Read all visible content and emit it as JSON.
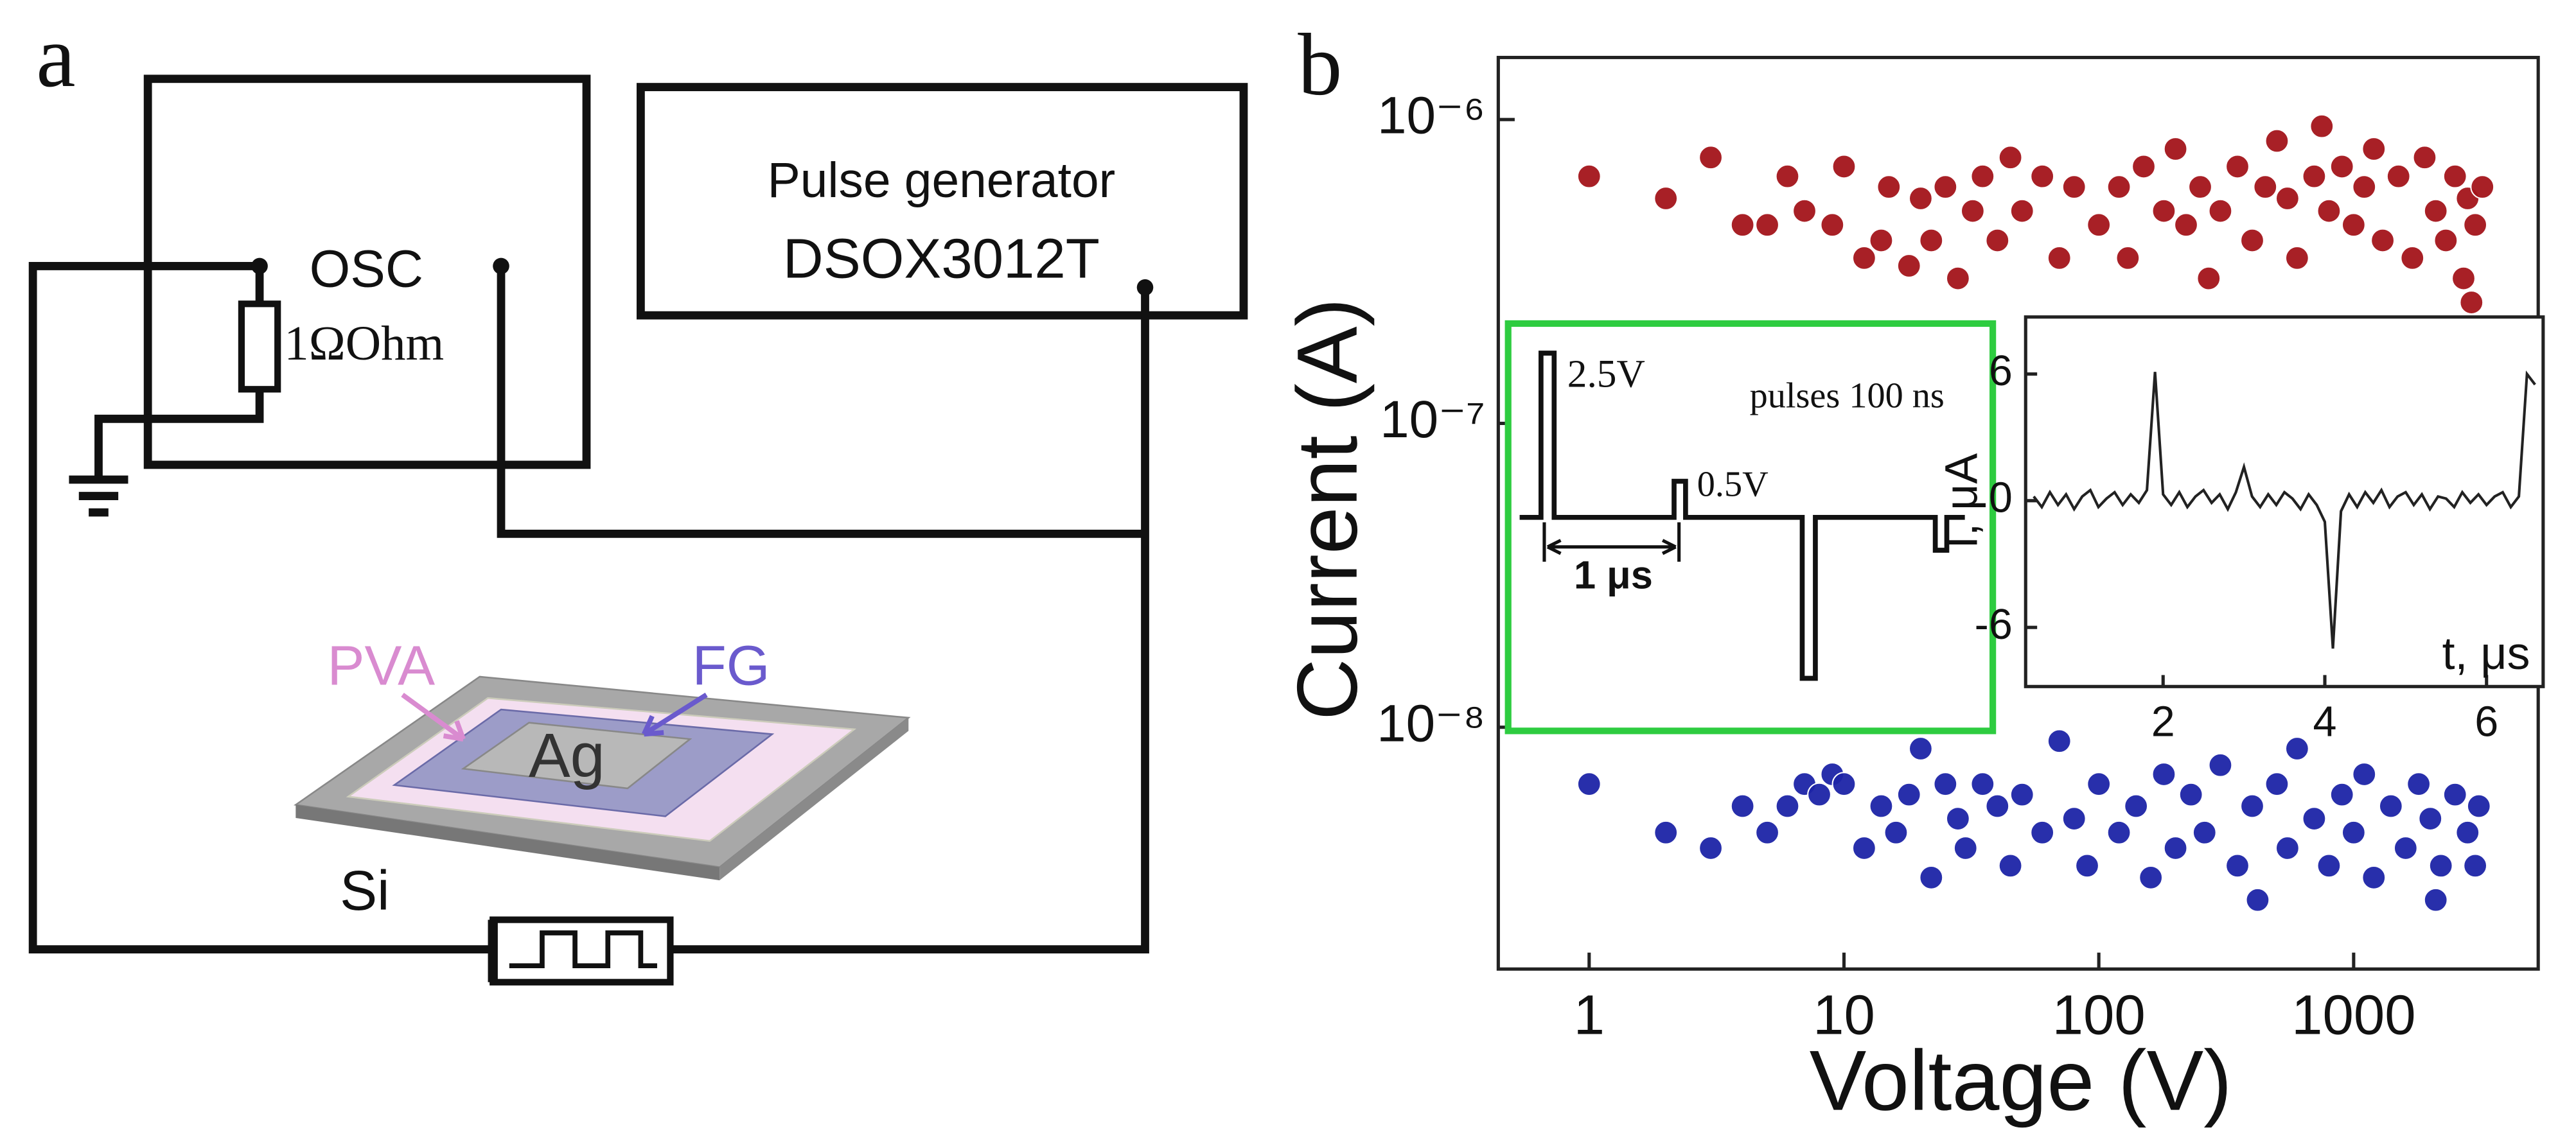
{
  "panel_labels": [
    "a",
    "b"
  ],
  "diagram": {
    "osc": "OSC",
    "resistor": "1ΩOhm",
    "generator_title": "Pulse generator",
    "generator_model": "DSOX3012T",
    "pva": "PVA",
    "fg": "FG",
    "ag": "Ag",
    "si": "Si"
  },
  "pulse_inset": {
    "high_pulse": "2.5V",
    "note": "pulses 100 ns",
    "low_pulse": "0.5V",
    "period": "1 μs"
  },
  "chart_data": [
    {
      "type": "scatter",
      "xlabel": "Voltage (V)",
      "ylabel": "Current (A)",
      "xscale": "log",
      "yscale": "log",
      "xlim": [
        0.44,
        5300
      ],
      "ylim": [
        1.6e-09,
        1.6e-06
      ],
      "xticks": [
        1,
        10,
        100,
        1000
      ],
      "yticks": [
        {
          "value": 1e-06,
          "label": "10⁻⁶"
        },
        {
          "value": 1e-07,
          "label": "10⁻⁷"
        },
        {
          "value": 1e-08,
          "label": "10⁻⁸"
        }
      ],
      "grid": false,
      "series": [
        {
          "color": "#a3141a",
          "x": [
            1,
            2,
            3,
            4,
            5,
            6,
            7,
            9,
            10,
            12,
            14,
            15,
            18,
            20,
            22,
            25,
            28,
            32,
            35,
            40,
            45,
            50,
            60,
            70,
            80,
            100,
            120,
            130,
            150,
            180,
            200,
            220,
            250,
            270,
            300,
            350,
            400,
            450,
            500,
            550,
            600,
            700,
            750,
            800,
            900,
            1000,
            1100,
            1200,
            1300,
            1500,
            1700,
            1900,
            2100,
            2300,
            2500,
            2700,
            2800,
            2900,
            3000,
            3200
          ],
          "values": [
            6.5e-07,
            5.5e-07,
            7.5e-07,
            4.5e-07,
            4.5e-07,
            6.5e-07,
            5e-07,
            4.5e-07,
            7e-07,
            3.5e-07,
            4e-07,
            6e-07,
            3.3e-07,
            5.5e-07,
            4e-07,
            6e-07,
            3e-07,
            5e-07,
            6.5e-07,
            4e-07,
            7.5e-07,
            5e-07,
            6.5e-07,
            3.5e-07,
            6e-07,
            4.5e-07,
            6e-07,
            3.5e-07,
            7e-07,
            5e-07,
            8e-07,
            4.5e-07,
            6e-07,
            3e-07,
            5e-07,
            7e-07,
            4e-07,
            6e-07,
            8.5e-07,
            5.5e-07,
            3.5e-07,
            6.5e-07,
            9.5e-07,
            5e-07,
            7e-07,
            4.5e-07,
            6e-07,
            8e-07,
            4e-07,
            6.5e-07,
            3.5e-07,
            7.5e-07,
            5e-07,
            4e-07,
            6.5e-07,
            3e-07,
            5.5e-07,
            2.5e-07,
            4.5e-07,
            6e-07
          ]
        },
        {
          "color": "#1c24a6",
          "x": [
            1,
            2,
            3,
            4,
            5,
            6,
            7,
            8,
            9,
            10,
            12,
            14,
            16,
            18,
            20,
            22,
            25,
            28,
            30,
            35,
            40,
            45,
            50,
            60,
            70,
            80,
            90,
            100,
            120,
            140,
            160,
            180,
            200,
            230,
            260,
            300,
            350,
            400,
            420,
            500,
            550,
            600,
            700,
            800,
            900,
            1000,
            1100,
            1200,
            1400,
            1600,
            1800,
            2000,
            2100,
            2200,
            2500,
            2800,
            3000,
            3100
          ],
          "values": [
            6.5e-09,
            4.5e-09,
            4e-09,
            5.5e-09,
            4.5e-09,
            5.5e-09,
            6.5e-09,
            6e-09,
            7e-09,
            6.5e-09,
            4e-09,
            5.5e-09,
            4.5e-09,
            6e-09,
            8.5e-09,
            3.2e-09,
            6.5e-09,
            5e-09,
            4e-09,
            6.5e-09,
            5.5e-09,
            3.5e-09,
            6e-09,
            4.5e-09,
            9e-09,
            5e-09,
            3.5e-09,
            6.5e-09,
            4.5e-09,
            5.5e-09,
            3.2e-09,
            7e-09,
            4e-09,
            6e-09,
            4.5e-09,
            7.5e-09,
            3.5e-09,
            5.5e-09,
            2.7e-09,
            6.5e-09,
            4e-09,
            8.5e-09,
            5e-09,
            3.5e-09,
            6e-09,
            4.5e-09,
            7e-09,
            3.2e-09,
            5.5e-09,
            4e-09,
            6.5e-09,
            5e-09,
            2.7e-09,
            3.5e-09,
            6e-09,
            4.5e-09,
            3.5e-09,
            5.5e-09
          ]
        }
      ]
    },
    {
      "type": "line",
      "xlabel": "t, μs",
      "ylabel": "I, μA",
      "xlim": [
        0.3,
        6.7
      ],
      "ylim": [
        -8.8,
        8.7
      ],
      "xticks": [
        2,
        4,
        6
      ],
      "yticks": [
        6,
        0,
        -6
      ],
      "series": [
        {
          "color": "#222222",
          "x": [
            0.4,
            0.5,
            0.6,
            0.7,
            0.8,
            0.9,
            1.0,
            1.1,
            1.2,
            1.3,
            1.4,
            1.5,
            1.6,
            1.7,
            1.8,
            1.9,
            2.0,
            2.1,
            2.2,
            2.3,
            2.4,
            2.5,
            2.6,
            2.7,
            2.8,
            2.9,
            3.0,
            3.1,
            3.2,
            3.3,
            3.4,
            3.5,
            3.6,
            3.7,
            3.8,
            3.9,
            4.0,
            4.1,
            4.2,
            4.3,
            4.4,
            4.5,
            4.6,
            4.7,
            4.8,
            4.9,
            5.0,
            5.1,
            5.2,
            5.3,
            5.4,
            5.5,
            5.6,
            5.7,
            5.8,
            5.9,
            6.0,
            6.1,
            6.2,
            6.3,
            6.4,
            6.5,
            6.6
          ],
          "values": [
            0.2,
            -0.3,
            0.4,
            -0.2,
            0.3,
            -0.4,
            0.2,
            0.5,
            -0.3,
            0.1,
            0.4,
            -0.2,
            0.3,
            -0.1,
            0.5,
            6.1,
            0.3,
            -0.2,
            0.4,
            -0.3,
            0.2,
            0.5,
            -0.1,
            0.3,
            -0.4,
            0.4,
            1.6,
            0.2,
            -0.3,
            0.3,
            -0.2,
            0.4,
            0.1,
            -0.4,
            0.3,
            -0.2,
            -1.0,
            -7.0,
            -0.5,
            0.3,
            -0.3,
            0.4,
            -0.1,
            0.5,
            -0.3,
            0.2,
            0.4,
            -0.2,
            0.3,
            -0.4,
            0.2,
            0.1,
            -0.3,
            0.4,
            -0.1,
            0.3,
            -0.2,
            0.2,
            0.4,
            -0.3,
            0.2,
            6.0,
            5.5
          ]
        }
      ]
    }
  ]
}
